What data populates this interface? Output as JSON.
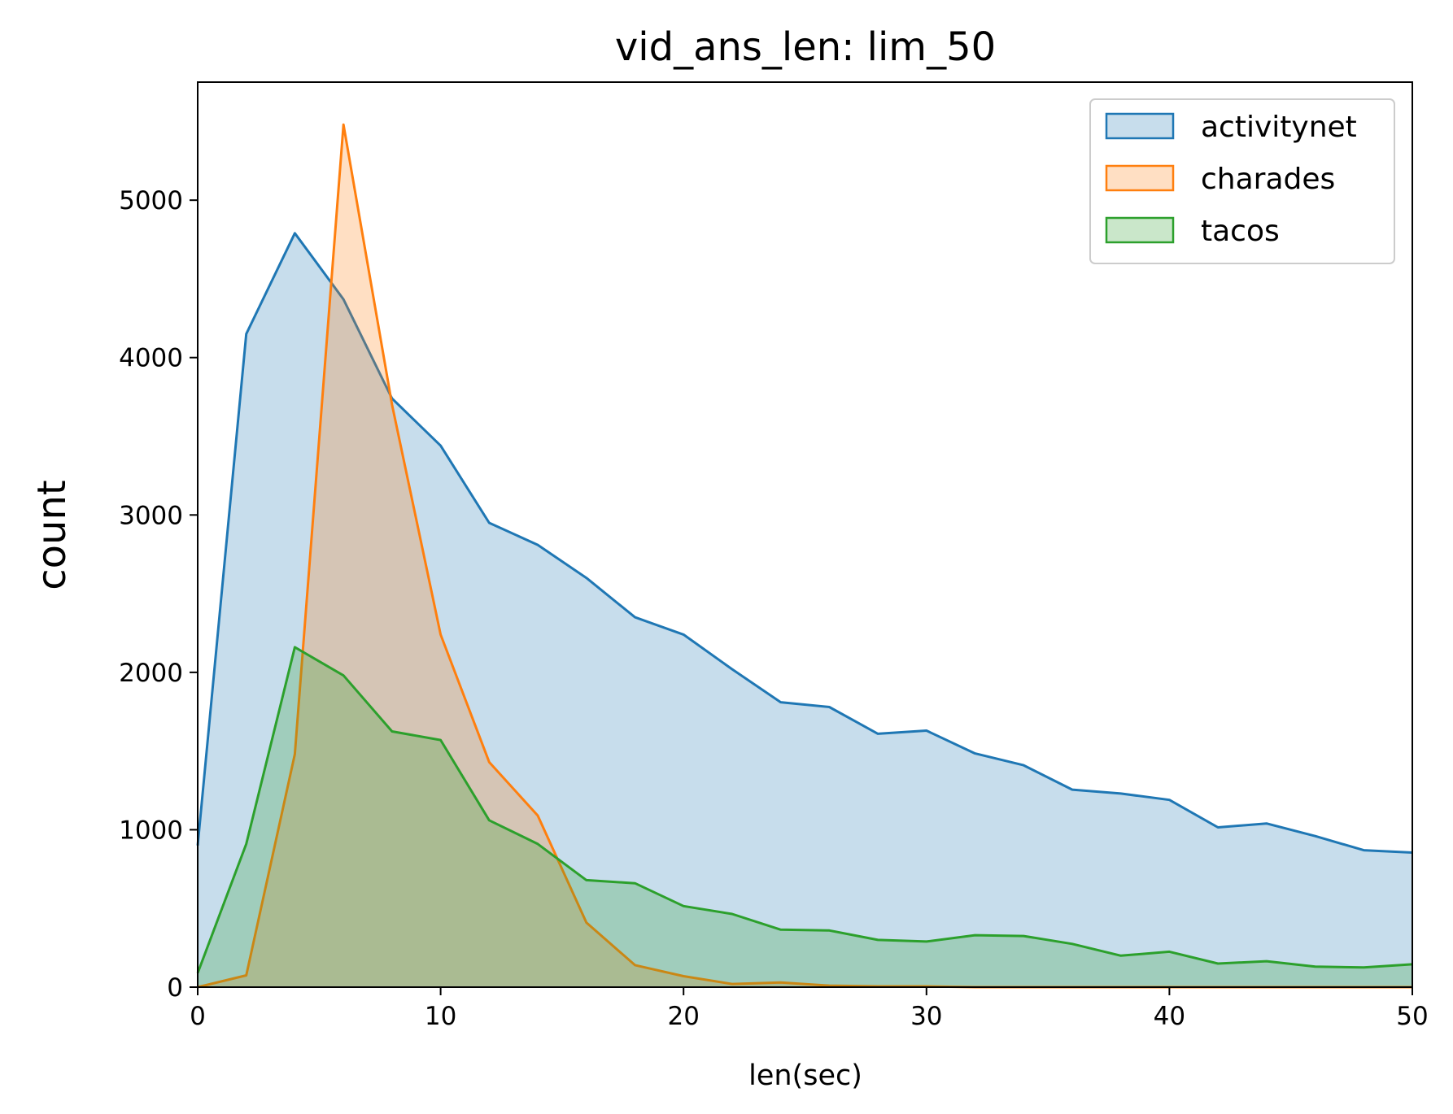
{
  "chart_data": {
    "type": "area",
    "title": "vid_ans_len: lim_50",
    "xlabel": "len(sec)",
    "ylabel": "count",
    "xlim": [
      0,
      50
    ],
    "ylim": [
      0,
      5750
    ],
    "xticks": [
      0,
      10,
      20,
      30,
      40,
      50
    ],
    "yticks": [
      0,
      1000,
      2000,
      3000,
      4000,
      5000
    ],
    "legend_position": "top-right",
    "grid": false,
    "x": [
      0,
      2,
      4,
      6,
      8,
      10,
      12,
      14,
      16,
      18,
      20,
      22,
      24,
      26,
      28,
      30,
      32,
      34,
      36,
      38,
      40,
      42,
      44,
      46,
      48,
      50
    ],
    "series": [
      {
        "name": "activitynet",
        "color": "#1f77b4",
        "values": [
          900,
          4150,
          4790,
          4370,
          3740,
          3440,
          2950,
          2810,
          2600,
          2350,
          2240,
          2020,
          1810,
          1780,
          1610,
          1630,
          1485,
          1410,
          1255,
          1230,
          1190,
          1015,
          1040,
          960,
          870,
          855
        ]
      },
      {
        "name": "charades",
        "color": "#ff7f0e",
        "values": [
          0,
          75,
          1480,
          5480,
          3700,
          2240,
          1430,
          1090,
          410,
          140,
          70,
          20,
          30,
          10,
          5,
          5,
          0,
          0,
          0,
          0,
          0,
          0,
          0,
          0,
          0,
          0
        ]
      },
      {
        "name": "tacos",
        "color": "#2ca02c",
        "values": [
          90,
          910,
          2160,
          1980,
          1625,
          1570,
          1060,
          910,
          680,
          660,
          515,
          465,
          365,
          360,
          300,
          290,
          330,
          325,
          275,
          200,
          225,
          150,
          165,
          130,
          125,
          145
        ]
      }
    ]
  }
}
